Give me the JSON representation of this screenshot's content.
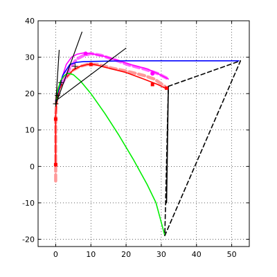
{
  "chart_data": {
    "type": "line",
    "title": "",
    "xlabel": "",
    "ylabel": "",
    "xlim": [
      -5,
      55
    ],
    "ylim": [
      -22,
      40
    ],
    "xticks": [
      0,
      10,
      20,
      30,
      40,
      50
    ],
    "yticks": [
      -20,
      -10,
      0,
      10,
      20,
      30,
      40
    ],
    "grid": true,
    "series": [
      {
        "role": "pink-dashed-path",
        "color": "#ff9999",
        "style": "dashed-thick",
        "points": [
          [
            0,
            -4
          ],
          [
            0,
            2
          ],
          [
            0,
            8
          ],
          [
            0,
            14
          ],
          [
            0.3,
            19
          ],
          [
            1,
            22
          ],
          [
            3,
            24.5
          ],
          [
            5,
            26.5
          ],
          [
            7,
            27.5
          ],
          [
            9,
            28
          ],
          [
            12,
            28
          ],
          [
            16,
            27
          ],
          [
            20,
            26.2
          ],
          [
            25,
            25
          ],
          [
            28,
            24
          ],
          [
            31,
            22
          ]
        ]
      },
      {
        "role": "red-path",
        "color": "#ff0000",
        "style": "solid",
        "points": [
          [
            0,
            0
          ],
          [
            0,
            5
          ],
          [
            0,
            10
          ],
          [
            0,
            14
          ],
          [
            0.2,
            17
          ],
          [
            0.5,
            19
          ],
          [
            1,
            21
          ],
          [
            2,
            23
          ],
          [
            3.5,
            25
          ],
          [
            5,
            26.5
          ],
          [
            7,
            27.5
          ],
          [
            9,
            28
          ],
          [
            11,
            28
          ],
          [
            15,
            27
          ],
          [
            20,
            25.8
          ],
          [
            25,
            24
          ],
          [
            29,
            22.5
          ],
          [
            31.5,
            21.3
          ]
        ]
      },
      {
        "role": "magenta-dashed-path",
        "color": "#ff66ff",
        "style": "dashed-thick",
        "points": [
          [
            2,
            23
          ],
          [
            4,
            27
          ],
          [
            6,
            29.5
          ],
          [
            8,
            30.5
          ],
          [
            10,
            31
          ],
          [
            13,
            30.5
          ],
          [
            17,
            29.2
          ],
          [
            21,
            27.8
          ],
          [
            25,
            26.8
          ],
          [
            29,
            25.5
          ],
          [
            32,
            24
          ]
        ]
      },
      {
        "role": "magenta-path",
        "color": "#ff00ff",
        "style": "solid",
        "points": [
          [
            1,
            22
          ],
          [
            2,
            25
          ],
          [
            3,
            28
          ],
          [
            4.5,
            30
          ],
          [
            6,
            30.8
          ],
          [
            8,
            31.2
          ],
          [
            10,
            31
          ],
          [
            14,
            30.2
          ],
          [
            18,
            29
          ],
          [
            22,
            27.8
          ],
          [
            26,
            26.8
          ],
          [
            29,
            25.5
          ],
          [
            32,
            24
          ]
        ]
      },
      {
        "role": "blue-path",
        "color": "#0000ff",
        "style": "solid",
        "points": [
          [
            0,
            18
          ],
          [
            2,
            25
          ],
          [
            4,
            28
          ],
          [
            6,
            28.6
          ],
          [
            8,
            28.8
          ],
          [
            20,
            29
          ],
          [
            35,
            29
          ],
          [
            52,
            29
          ]
        ]
      },
      {
        "role": "green-path",
        "color": "#00ee00",
        "style": "solid",
        "points": [
          [
            0,
            17
          ],
          [
            0.6,
            21
          ],
          [
            1.4,
            23.5
          ],
          [
            2.5,
            25
          ],
          [
            3.5,
            25.6
          ],
          [
            5,
            25.2
          ],
          [
            7,
            23.5
          ],
          [
            10,
            20
          ],
          [
            14,
            14.5
          ],
          [
            18,
            8.5
          ],
          [
            22,
            2
          ],
          [
            26,
            -5
          ],
          [
            28.5,
            -10
          ],
          [
            31,
            -19
          ]
        ]
      },
      {
        "role": "black-dashed-outline",
        "color": "#000000",
        "style": "dashed",
        "points": [
          [
            32,
            22
          ],
          [
            52.5,
            29
          ],
          [
            31,
            -19
          ],
          [
            32,
            22
          ]
        ]
      },
      {
        "role": "black-vertical-edge",
        "color": "#000000",
        "style": "solid",
        "points": [
          [
            32,
            22
          ],
          [
            31.5,
            -10
          ]
        ]
      }
    ],
    "tangent_lines": [
      {
        "points": [
          [
            0,
            17
          ],
          [
            1,
            32
          ]
        ]
      },
      {
        "points": [
          [
            0,
            17
          ],
          [
            7.5,
            37
          ]
        ]
      },
      {
        "points": [
          [
            0,
            18
          ],
          [
            20,
            32.5
          ]
        ]
      }
    ],
    "marker_points": {
      "black_plus": [
        [
          0,
          17.2
        ],
        [
          0.5,
          19.5
        ],
        [
          1.5,
          23
        ],
        [
          5.5,
          27.5
        ]
      ],
      "red_star": [
        [
          0,
          13
        ],
        [
          0,
          0.5
        ],
        [
          10,
          28
        ],
        [
          27.5,
          22.5
        ],
        [
          31.5,
          21.5
        ]
      ],
      "magenta_dot": [
        [
          8.5,
          31
        ],
        [
          27.5,
          25.5
        ]
      ]
    }
  }
}
